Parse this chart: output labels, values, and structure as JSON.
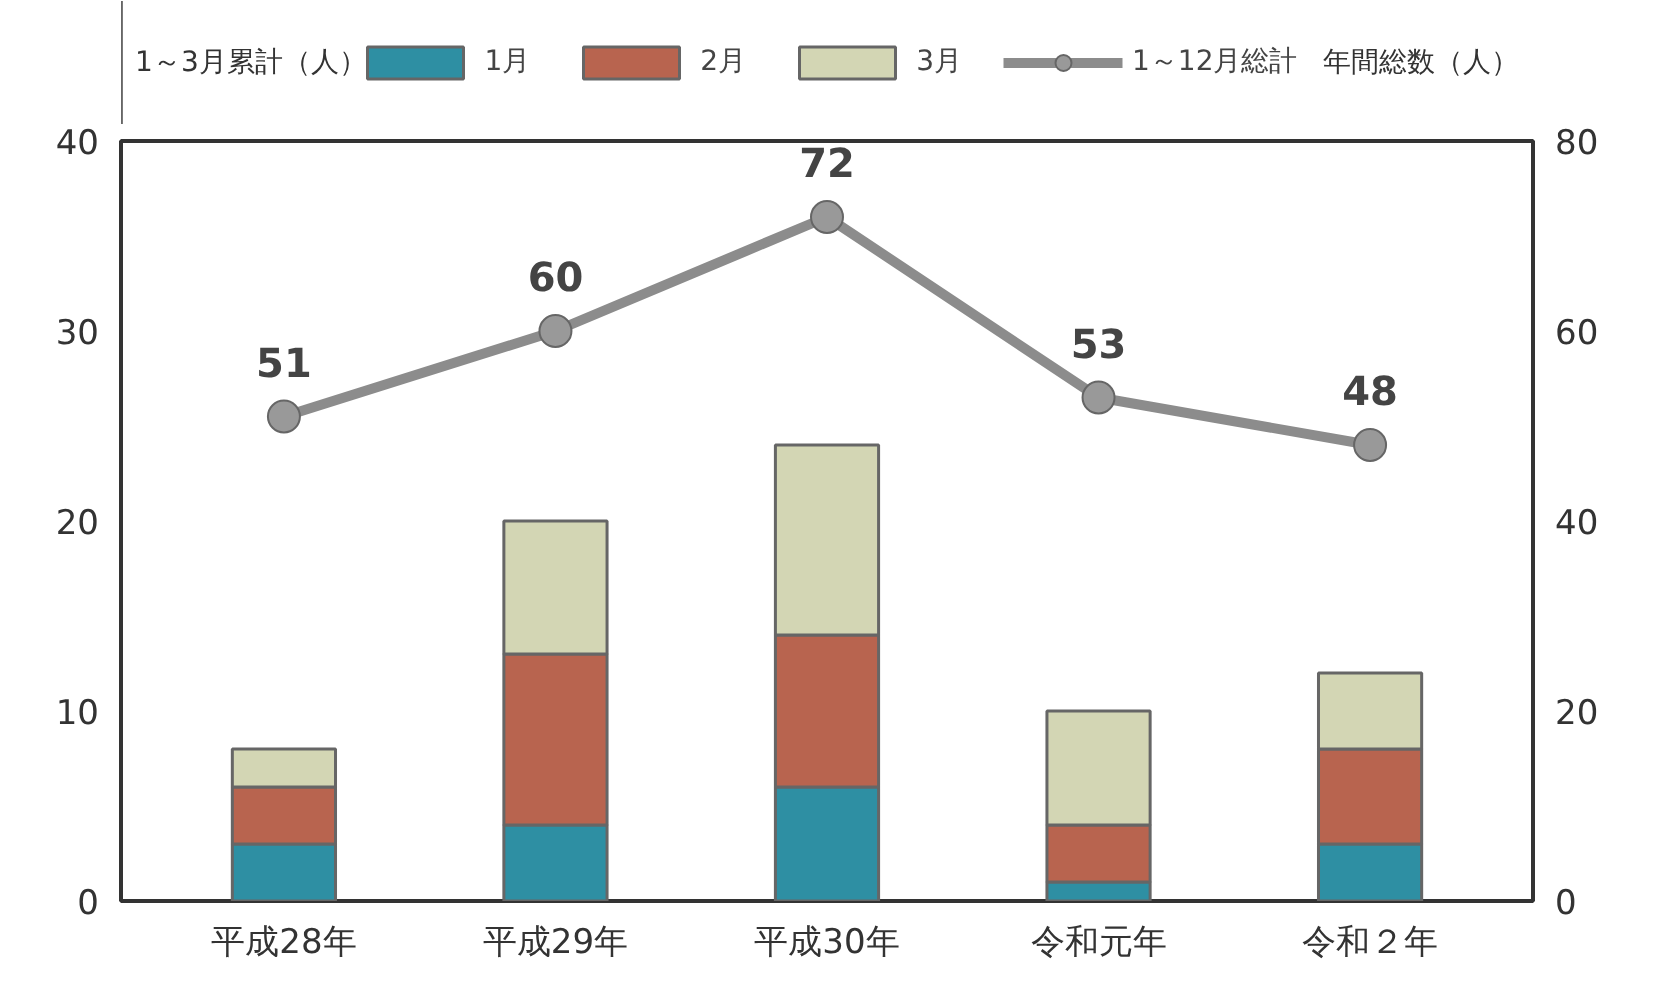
{
  "chart_data": {
    "type": "bar",
    "stacked": true,
    "ylabel": "1～3月累計（人）",
    "y2label": "年間総数（人）",
    "categories": [
      "平成28年",
      "平成29年",
      "平成30年",
      "令和元年",
      "令和２年"
    ],
    "series": [
      {
        "name": "1月",
        "color": "#2e8fa3",
        "values": [
          3,
          4,
          6,
          1,
          3
        ]
      },
      {
        "name": "2月",
        "color": "#b8644f",
        "values": [
          3,
          9,
          8,
          3,
          5
        ]
      },
      {
        "name": "3月",
        "color": "#d3d6b4",
        "values": [
          2,
          7,
          10,
          6,
          4
        ]
      },
      {
        "name": "1～12月総計",
        "type": "line",
        "axis": "y2",
        "color": "#8c8c8c",
        "values": [
          51,
          60,
          72,
          53,
          48
        ],
        "data_labels": true,
        "marker": "circle"
      }
    ],
    "ylim": [
      0,
      40
    ],
    "yticks": [
      0,
      10,
      20,
      30,
      40
    ],
    "y2lim": [
      0,
      80
    ],
    "y2ticks": [
      0,
      20,
      40,
      60,
      80
    ],
    "grid": false,
    "legend": "top"
  }
}
